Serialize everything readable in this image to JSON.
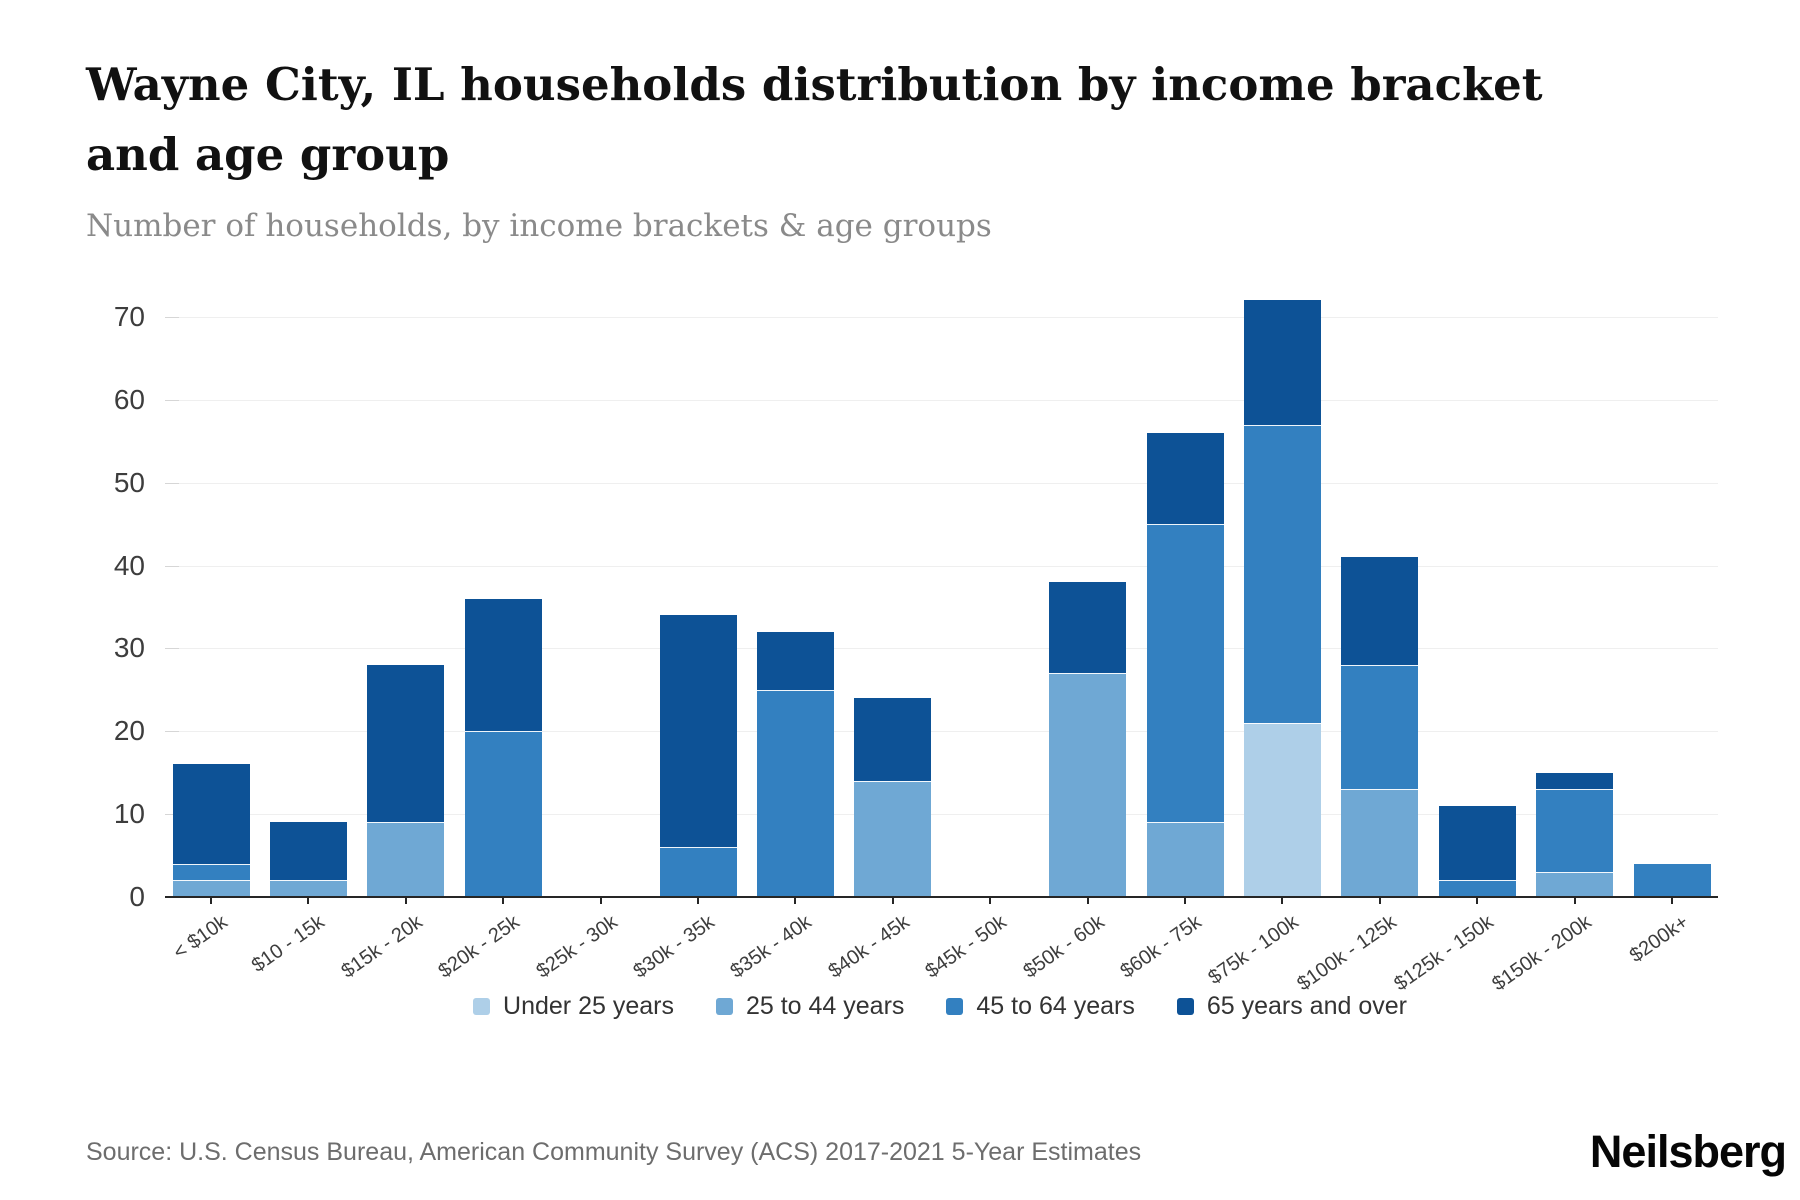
{
  "header": {
    "title": "Wayne City, IL households distribution by income bracket and age group",
    "subtitle": "Number of households, by income brackets & age groups"
  },
  "chart_data": {
    "type": "bar",
    "stacked": true,
    "title": "Wayne City, IL households distribution by income bracket and age group",
    "xlabel": "",
    "ylabel": "",
    "ylim": [
      0,
      72
    ],
    "yticks": [
      0,
      10,
      20,
      30,
      40,
      50,
      60,
      70
    ],
    "grid": true,
    "legend_position": "bottom",
    "categories": [
      "< $10k",
      "$10 - 15k",
      "$15k - 20k",
      "$20k - 25k",
      "$25k - 30k",
      "$30k - 35k",
      "$35k - 40k",
      "$40k - 45k",
      "$45k - 50k",
      "$50k - 60k",
      "$60k - 75k",
      "$75k - 100k",
      "$100k - 125k",
      "$125k - 150k",
      "$150k - 200k",
      "$200k+"
    ],
    "series": [
      {
        "name": "Under 25 years",
        "color": "#aecfe8",
        "values": [
          0,
          0,
          0,
          0,
          0,
          0,
          0,
          0,
          0,
          0,
          0,
          21,
          0,
          0,
          0,
          0
        ]
      },
      {
        "name": "25 to 44 years",
        "color": "#6fa8d4",
        "values": [
          2,
          2,
          9,
          0,
          0,
          0,
          0,
          14,
          0,
          27,
          9,
          0,
          13,
          0,
          3,
          0
        ]
      },
      {
        "name": "45 to 64 years",
        "color": "#3380c0",
        "values": [
          2,
          0,
          0,
          20,
          0,
          6,
          25,
          0,
          0,
          0,
          36,
          36,
          15,
          2,
          10,
          4
        ]
      },
      {
        "name": "65 years and over",
        "color": "#0d5296",
        "values": [
          12,
          7,
          19,
          16,
          0,
          28,
          7,
          10,
          0,
          11,
          11,
          15,
          13,
          9,
          2,
          0
        ]
      }
    ],
    "totals": [
      16,
      9,
      28,
      36,
      0,
      34,
      32,
      24,
      0,
      38,
      56,
      72,
      41,
      11,
      15,
      4
    ]
  },
  "footer": {
    "source": "Source: U.S. Census Bureau, American Community Survey (ACS) 2017-2021 5-Year Estimates",
    "logo": "Neilsberg"
  }
}
